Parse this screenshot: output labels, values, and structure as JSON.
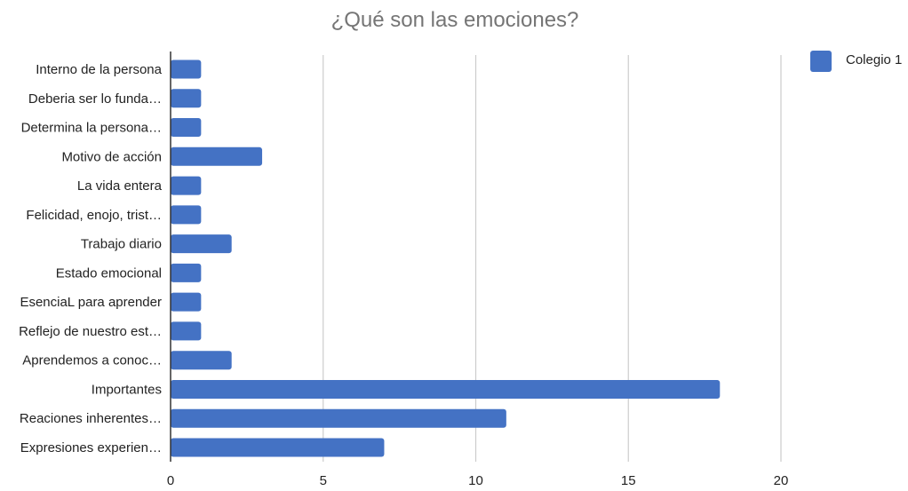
{
  "chart_data": {
    "type": "bar",
    "orientation": "horizontal",
    "title": "¿Qué son las emociones?",
    "xlabel": "",
    "ylabel": "",
    "categories": [
      "Interno de la persona",
      "Deberia ser lo funda…",
      "Determina la persona…",
      "Motivo de acción",
      "La vida entera",
      "Felicidad, enojo, trist…",
      "Trabajo diario",
      "Estado emocional",
      "EsenciaL para aprender",
      "Reflejo de nuestro est…",
      "Aprendemos a conoc…",
      "Importantes",
      "Reaciones inherentes…",
      "Expresiones experien…"
    ],
    "series": [
      {
        "name": "Colegio 1",
        "color": "#4472c4",
        "values": [
          1,
          1,
          1,
          3,
          1,
          1,
          2,
          1,
          1,
          1,
          2,
          18,
          11,
          7
        ]
      }
    ],
    "xlim": [
      0,
      20
    ],
    "xticks": [
      "0",
      "5",
      "10",
      "15",
      "20"
    ],
    "grid": "vertical",
    "legend_position": "top-right"
  }
}
